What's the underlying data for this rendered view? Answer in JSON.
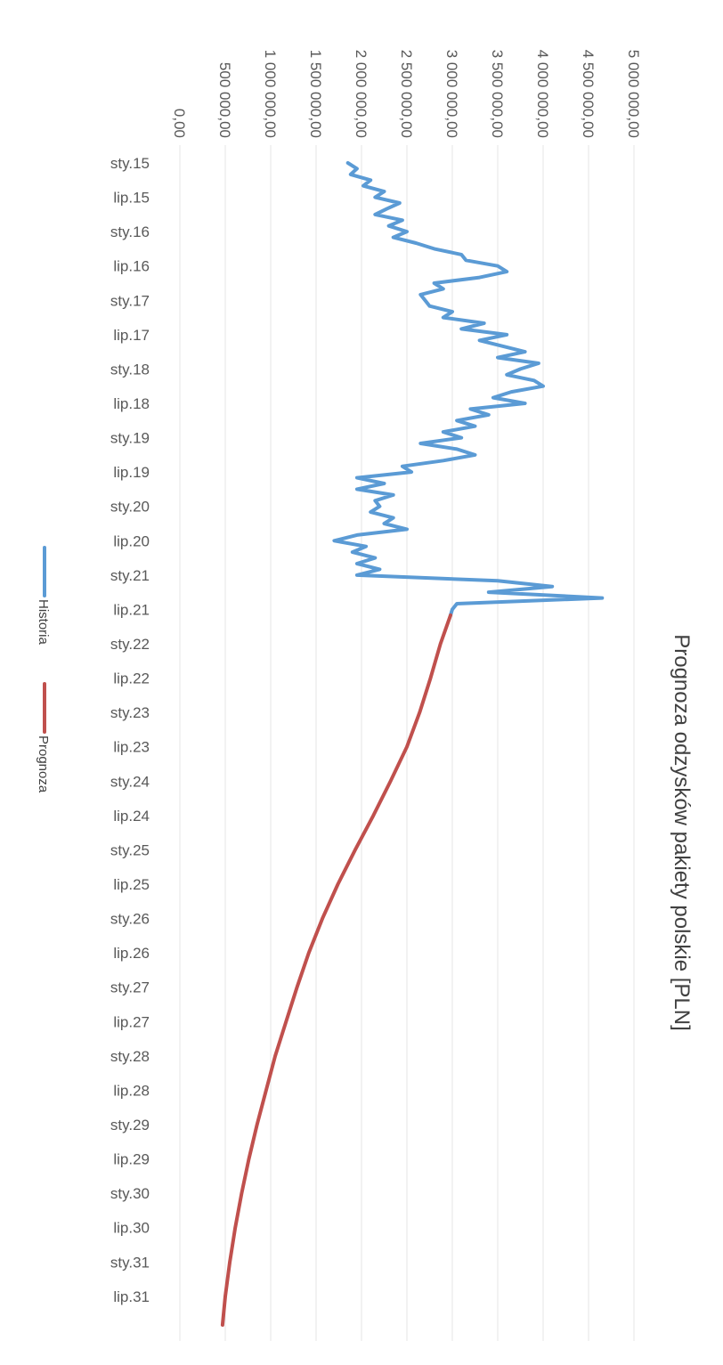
{
  "chart_data": {
    "type": "line",
    "title": "Prognoza odzysków pakiety polskie [PLN]",
    "xlabel": "",
    "ylabel": "",
    "ylim": [
      0,
      5000000
    ],
    "grid": true,
    "legend_position": "bottom",
    "y_ticks": [
      {
        "value": 0,
        "label": "0,00"
      },
      {
        "value": 500000,
        "label": "500 000,00"
      },
      {
        "value": 1000000,
        "label": "1 000 000,00"
      },
      {
        "value": 1500000,
        "label": "1 500 000,00"
      },
      {
        "value": 2000000,
        "label": "2 000 000,00"
      },
      {
        "value": 2500000,
        "label": "2 500 000,00"
      },
      {
        "value": 3000000,
        "label": "3 000 000,00"
      },
      {
        "value": 3500000,
        "label": "3 500 000,00"
      },
      {
        "value": 4000000,
        "label": "4 000 000,00"
      },
      {
        "value": 4500000,
        "label": "4 500 000,00"
      },
      {
        "value": 5000000,
        "label": "5 000 000,00"
      }
    ],
    "x_tick_labels": [
      {
        "month": "2015-01",
        "label": "sty.15"
      },
      {
        "month": "2015-07",
        "label": "lip.15"
      },
      {
        "month": "2016-01",
        "label": "sty.16"
      },
      {
        "month": "2016-07",
        "label": "lip.16"
      },
      {
        "month": "2017-01",
        "label": "sty.17"
      },
      {
        "month": "2017-07",
        "label": "lip.17"
      },
      {
        "month": "2018-01",
        "label": "sty.18"
      },
      {
        "month": "2018-07",
        "label": "lip.18"
      },
      {
        "month": "2019-01",
        "label": "sty.19"
      },
      {
        "month": "2019-07",
        "label": "lip.19"
      },
      {
        "month": "2020-01",
        "label": "sty.20"
      },
      {
        "month": "2020-07",
        "label": "lip.20"
      },
      {
        "month": "2021-01",
        "label": "sty.21"
      },
      {
        "month": "2021-07",
        "label": "lip.21"
      },
      {
        "month": "2022-01",
        "label": "sty.22"
      },
      {
        "month": "2022-07",
        "label": "lip.22"
      },
      {
        "month": "2023-01",
        "label": "sty.23"
      },
      {
        "month": "2023-07",
        "label": "lip.23"
      },
      {
        "month": "2024-01",
        "label": "sty.24"
      },
      {
        "month": "2024-07",
        "label": "lip.24"
      },
      {
        "month": "2025-01",
        "label": "sty.25"
      },
      {
        "month": "2025-07",
        "label": "lip.25"
      },
      {
        "month": "2026-01",
        "label": "sty.26"
      },
      {
        "month": "2026-07",
        "label": "lip.26"
      },
      {
        "month": "2027-01",
        "label": "sty.27"
      },
      {
        "month": "2027-07",
        "label": "lip.27"
      },
      {
        "month": "2028-01",
        "label": "sty.28"
      },
      {
        "month": "2028-07",
        "label": "lip.28"
      },
      {
        "month": "2029-01",
        "label": "sty.29"
      },
      {
        "month": "2029-07",
        "label": "lip.29"
      },
      {
        "month": "2030-01",
        "label": "sty.30"
      },
      {
        "month": "2030-07",
        "label": "lip.30"
      },
      {
        "month": "2031-01",
        "label": "sty.31"
      },
      {
        "month": "2031-07",
        "label": "lip.31"
      }
    ],
    "series": [
      {
        "name": "Historia",
        "color": "#5b9bd5",
        "points": [
          [
            "2015-01",
            1850000
          ],
          [
            "2015-02",
            1950000
          ],
          [
            "2015-03",
            1880000
          ],
          [
            "2015-04",
            2100000
          ],
          [
            "2015-05",
            2020000
          ],
          [
            "2015-06",
            2250000
          ],
          [
            "2015-07",
            2150000
          ],
          [
            "2015-08",
            2420000
          ],
          [
            "2015-09",
            2280000
          ],
          [
            "2015-10",
            2150000
          ],
          [
            "2015-11",
            2450000
          ],
          [
            "2015-12",
            2300000
          ],
          [
            "2016-01",
            2500000
          ],
          [
            "2016-02",
            2350000
          ],
          [
            "2016-03",
            2600000
          ],
          [
            "2016-04",
            2800000
          ],
          [
            "2016-05",
            3100000
          ],
          [
            "2016-06",
            3150000
          ],
          [
            "2016-07",
            3500000
          ],
          [
            "2016-08",
            3600000
          ],
          [
            "2016-09",
            3300000
          ],
          [
            "2016-10",
            2800000
          ],
          [
            "2016-11",
            2900000
          ],
          [
            "2016-12",
            2650000
          ],
          [
            "2017-01",
            2700000
          ],
          [
            "2017-02",
            2750000
          ],
          [
            "2017-03",
            3000000
          ],
          [
            "2017-04",
            2900000
          ],
          [
            "2017-05",
            3350000
          ],
          [
            "2017-06",
            3100000
          ],
          [
            "2017-07",
            3600000
          ],
          [
            "2017-08",
            3300000
          ],
          [
            "2017-09",
            3550000
          ],
          [
            "2017-10",
            3800000
          ],
          [
            "2017-11",
            3500000
          ],
          [
            "2017-12",
            3950000
          ],
          [
            "2018-01",
            3750000
          ],
          [
            "2018-02",
            3600000
          ],
          [
            "2018-03",
            3900000
          ],
          [
            "2018-04",
            4000000
          ],
          [
            "2018-05",
            3650000
          ],
          [
            "2018-06",
            3450000
          ],
          [
            "2018-07",
            3800000
          ],
          [
            "2018-08",
            3200000
          ],
          [
            "2018-09",
            3400000
          ],
          [
            "2018-10",
            3050000
          ],
          [
            "2018-11",
            3250000
          ],
          [
            "2018-12",
            2900000
          ],
          [
            "2019-01",
            3100000
          ],
          [
            "2019-02",
            2650000
          ],
          [
            "2019-03",
            3050000
          ],
          [
            "2019-04",
            3250000
          ],
          [
            "2019-05",
            2900000
          ],
          [
            "2019-06",
            2450000
          ],
          [
            "2019-07",
            2550000
          ],
          [
            "2019-08",
            1950000
          ],
          [
            "2019-09",
            2250000
          ],
          [
            "2019-10",
            1950000
          ],
          [
            "2019-11",
            2350000
          ],
          [
            "2019-12",
            2150000
          ],
          [
            "2020-01",
            2200000
          ],
          [
            "2020-02",
            2100000
          ],
          [
            "2020-03",
            2350000
          ],
          [
            "2020-04",
            2250000
          ],
          [
            "2020-05",
            2500000
          ],
          [
            "2020-06",
            1950000
          ],
          [
            "2020-07",
            1700000
          ],
          [
            "2020-08",
            2050000
          ],
          [
            "2020-09",
            1900000
          ],
          [
            "2020-10",
            2150000
          ],
          [
            "2020-11",
            1950000
          ],
          [
            "2020-12",
            2200000
          ],
          [
            "2021-01",
            1950000
          ],
          [
            "2021-02",
            3500000
          ],
          [
            "2021-03",
            4100000
          ],
          [
            "2021-04",
            3400000
          ],
          [
            "2021-05",
            4650000
          ],
          [
            "2021-06",
            3050000
          ],
          [
            "2021-07",
            3000000
          ],
          [
            "2021-08",
            2980000
          ]
        ]
      },
      {
        "name": "Prognoza",
        "color": "#c0504d",
        "points": [
          [
            "2021-08",
            2980000
          ],
          [
            "2022-01",
            2870000
          ],
          [
            "2022-07",
            2760000
          ],
          [
            "2023-01",
            2640000
          ],
          [
            "2023-07",
            2500000
          ],
          [
            "2024-01",
            2320000
          ],
          [
            "2024-07",
            2130000
          ],
          [
            "2025-01",
            1930000
          ],
          [
            "2025-07",
            1740000
          ],
          [
            "2026-01",
            1570000
          ],
          [
            "2026-07",
            1420000
          ],
          [
            "2027-01",
            1290000
          ],
          [
            "2027-07",
            1170000
          ],
          [
            "2028-01",
            1050000
          ],
          [
            "2028-07",
            950000
          ],
          [
            "2029-01",
            850000
          ],
          [
            "2029-07",
            760000
          ],
          [
            "2030-01",
            680000
          ],
          [
            "2030-07",
            610000
          ],
          [
            "2031-01",
            550000
          ],
          [
            "2031-07",
            500000
          ],
          [
            "2031-12",
            470000
          ]
        ]
      }
    ]
  }
}
